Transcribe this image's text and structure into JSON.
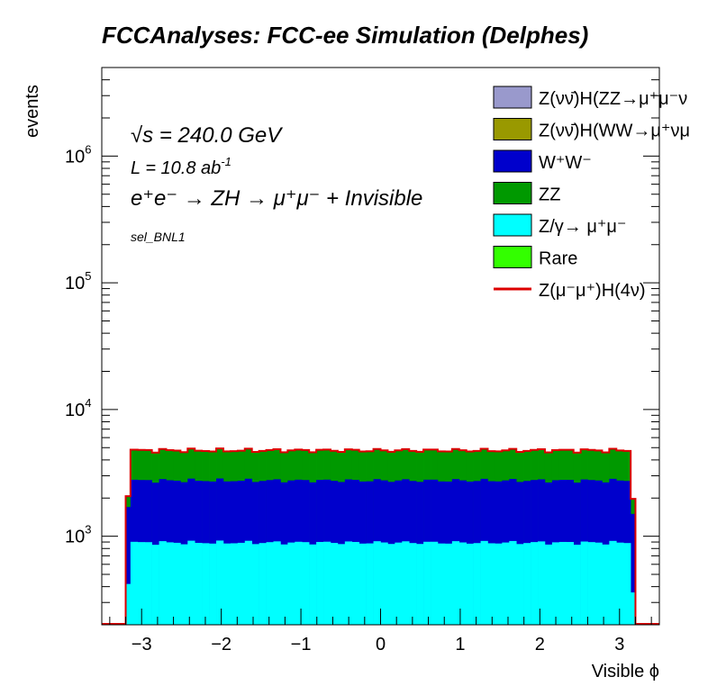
{
  "chart_data": {
    "type": "stacked-histogram",
    "title": "FCCAnalyses: FCC-ee Simulation (Delphes)",
    "xlabel": "Visible ϕ",
    "ylabel": "events",
    "xlim": [
      -3.5,
      3.5
    ],
    "ylim": [
      200,
      5000000
    ],
    "y_scale": "log",
    "x_ticks": [
      "−3",
      "−2",
      "−1",
      "0",
      "1",
      "2",
      "3"
    ],
    "y_ticks": [
      {
        "base": "10",
        "exp": "3",
        "value": 1000
      },
      {
        "base": "10",
        "exp": "4",
        "value": 10000
      },
      {
        "base": "10",
        "exp": "5",
        "value": 100000
      },
      {
        "base": "10",
        "exp": "6",
        "value": 1000000
      }
    ],
    "annotations": {
      "sqrt_s_symbol": "√s",
      "sqrt_s_value": " = 240.0 GeV",
      "lumi_prefix": "L = 10.8 ab",
      "lumi_exp": "-1",
      "process": "e⁺e⁻ → ZH → μ⁺μ⁻ + Invisible",
      "selection": "sel_BNL1"
    },
    "legend_position": "top-right",
    "bins_edges": [
      -3.5,
      -3.2,
      -3.14,
      3.14,
      3.2,
      3.5
    ],
    "series": [
      {
        "name": "Z/γ→ μ⁺μ⁻",
        "color": "#00ffff",
        "edge_values": [
          420,
          360
        ],
        "plateau": 890
      },
      {
        "name": "W⁺W⁻",
        "color": "#0000cc",
        "edge_values": [
          1700,
          1500
        ],
        "plateau": 2750
      },
      {
        "name": "ZZ",
        "color": "#009900",
        "edge_values": [
          2050,
          1950
        ],
        "plateau": 4700
      },
      {
        "name": "Rare",
        "color": "#33ff00",
        "edge_values": [
          2050,
          1950
        ],
        "plateau": 4710
      },
      {
        "name": "Z(νν̄)H(WW→μ⁺νμ⁻ν̄)",
        "color": "#999900",
        "edge_values": [
          2060,
          1960
        ],
        "plateau": 4720
      },
      {
        "name": "Z(νν̄)H(ZZ→μ⁺μ⁻νν̄)",
        "color": "#9999cc",
        "edge_values": [
          2060,
          1960
        ],
        "plateau": 4720
      }
    ],
    "signal": {
      "name": "Z(μ⁻μ⁺)H(4ν)",
      "color": "#dd0000",
      "plateau": 4750
    },
    "legend": [
      {
        "label": "Z(νν̄)H(ZZ→μ⁺μ⁻ν",
        "color": "#9999cc",
        "type": "box"
      },
      {
        "label": "Z(νν̄)H(WW→μ⁺νμ",
        "color": "#999900",
        "type": "box"
      },
      {
        "label": "W⁺W⁻",
        "color": "#0000cc",
        "type": "box"
      },
      {
        "label": "ZZ",
        "color": "#009900",
        "type": "box"
      },
      {
        "label": "Z/γ→ μ⁺μ⁻",
        "color": "#00ffff",
        "type": "box"
      },
      {
        "label": "Rare",
        "color": "#33ff00",
        "type": "box"
      },
      {
        "label": "Z(μ⁻μ⁺)H(4ν)",
        "color": "#dd0000",
        "type": "line"
      }
    ]
  }
}
